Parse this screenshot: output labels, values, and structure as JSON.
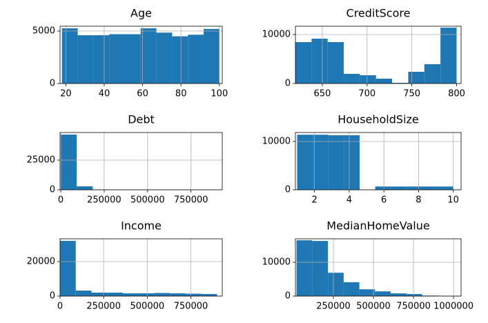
{
  "chart_data": [
    {
      "type": "histogram",
      "title": "Age",
      "color": "#1f77b4",
      "grid": true,
      "bins": [
        18,
        26.2,
        34.4,
        42.6,
        50.8,
        59,
        67.2,
        75.4,
        83.6,
        91.8,
        100
      ],
      "values": [
        5260,
        4600,
        4600,
        4700,
        4700,
        5260,
        4850,
        4500,
        4650,
        5200
      ],
      "xlim": [
        17,
        101.5
      ],
      "xticks": [
        20,
        40,
        60,
        80,
        100
      ],
      "ylim": [
        0,
        5460
      ],
      "yticks": [
        0,
        5000
      ]
    },
    {
      "type": "histogram",
      "title": "CreditScore",
      "color": "#1f77b4",
      "grid": true,
      "bins": [
        620,
        638,
        656,
        674,
        692,
        710,
        728,
        746,
        764,
        782,
        800
      ],
      "values": [
        8450,
        9150,
        8450,
        1970,
        1690,
        990,
        140,
        2390,
        3940,
        11400
      ],
      "xlim": [
        620,
        805
      ],
      "xticks": [
        650,
        700,
        750,
        800
      ],
      "ylim": [
        0,
        11690
      ],
      "yticks": [
        0,
        10000
      ]
    },
    {
      "type": "histogram",
      "title": "Debt",
      "color": "#1f77b4",
      "grid": true,
      "bins": [
        0,
        92000,
        184000,
        276000,
        368000,
        460000,
        552000,
        644000,
        736000,
        828000,
        920000
      ],
      "values": [
        46500,
        2900,
        300,
        80,
        30,
        10,
        5,
        3,
        1,
        1
      ],
      "xlim": [
        -4000,
        930000
      ],
      "xticks": [
        0,
        250000,
        500000,
        750000
      ],
      "ylim": [
        0,
        48260
      ],
      "yticks": [
        0,
        25000
      ]
    },
    {
      "type": "histogram",
      "title": "HouseholdSize",
      "color": "#1f77b4",
      "grid": true,
      "bins": [
        1,
        1.9,
        2.8,
        3.7,
        4.6,
        5.5,
        6.4,
        7.3,
        8.2,
        9.1,
        10
      ],
      "values": [
        11400,
        11400,
        11300,
        11300,
        0,
        680,
        680,
        680,
        680,
        680
      ],
      "xlim": [
        0.9,
        10.45
      ],
      "xticks": [
        2,
        4,
        6,
        8,
        10
      ],
      "ylim": [
        0,
        11860
      ],
      "yticks": [
        0,
        10000
      ]
    },
    {
      "type": "histogram",
      "title": "Income",
      "color": "#1f77b4",
      "grid": true,
      "bins": [
        0,
        90000,
        180000,
        270000,
        360000,
        450000,
        540000,
        630000,
        720000,
        810000,
        900000
      ],
      "values": [
        32000,
        3200,
        2000,
        2000,
        1600,
        1600,
        1800,
        1600,
        1400,
        1200
      ],
      "xlim": [
        0,
        930000
      ],
      "xticks": [
        0,
        250000,
        500000,
        750000
      ],
      "ylim": [
        0,
        33200
      ],
      "yticks": [
        0,
        20000
      ]
    },
    {
      "type": "histogram",
      "title": "MedianHomeValue",
      "color": "#1f77b4",
      "grid": true,
      "bins": [
        20000,
        118000,
        216000,
        314000,
        412000,
        510000,
        608000,
        706000,
        804000,
        902000,
        1000000
      ],
      "values": [
        16500,
        16300,
        6900,
        4100,
        2000,
        1400,
        800,
        600,
        150,
        100
      ],
      "xlim": [
        13000,
        1047000
      ],
      "xticks": [
        250000,
        500000,
        750000,
        1000000
      ],
      "ylim": [
        0,
        16940
      ],
      "yticks": [
        0,
        10000
      ]
    }
  ]
}
